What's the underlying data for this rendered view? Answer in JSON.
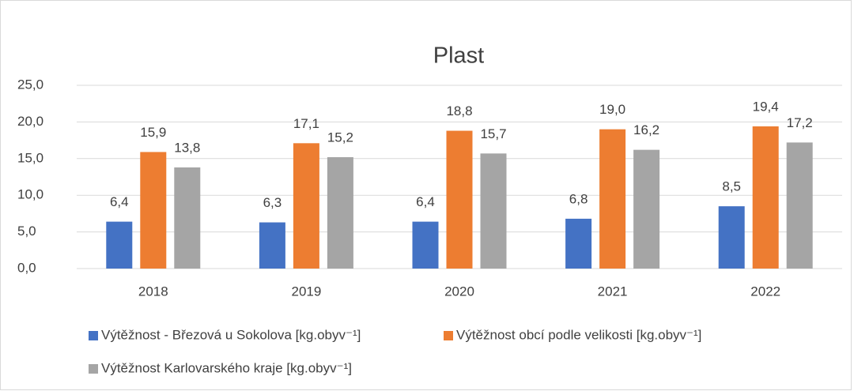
{
  "chart_data": {
    "type": "bar",
    "title": "Plast",
    "categories": [
      "2018",
      "2019",
      "2020",
      "2021",
      "2022"
    ],
    "series": [
      {
        "name": "Výtěžnost - Březová u Sokolova [kg.obyv⁻¹]",
        "color": "#4472c4",
        "values": [
          6.4,
          6.3,
          6.4,
          6.8,
          8.5
        ],
        "value_labels": [
          "6,4",
          "6,3",
          "6,4",
          "6,8",
          "8,5"
        ]
      },
      {
        "name": "Výtěžnost obcí podle velikosti [kg.obyv⁻¹]",
        "color": "#ed7d31",
        "values": [
          15.9,
          17.1,
          18.8,
          19.0,
          19.4
        ],
        "value_labels": [
          "15,9",
          "17,1",
          "18,8",
          "19,0",
          "19,4"
        ]
      },
      {
        "name": "Výtěžnost Karlovarského kraje [kg.obyv⁻¹]",
        "color": "#a5a5a5",
        "values": [
          13.8,
          15.2,
          15.7,
          16.2,
          17.2
        ],
        "value_labels": [
          "13,8",
          "15,2",
          "15,7",
          "16,2",
          "17,2"
        ]
      }
    ],
    "ylim": [
      0,
      25
    ],
    "yticks": [
      {
        "value": 0,
        "label": "0,0"
      },
      {
        "value": 5,
        "label": "5,0"
      },
      {
        "value": 10,
        "label": "10,0"
      },
      {
        "value": 15,
        "label": "15,0"
      },
      {
        "value": 20,
        "label": "20,0"
      },
      {
        "value": 25,
        "label": "25,0"
      }
    ],
    "grid": true,
    "legend": "bottom"
  }
}
